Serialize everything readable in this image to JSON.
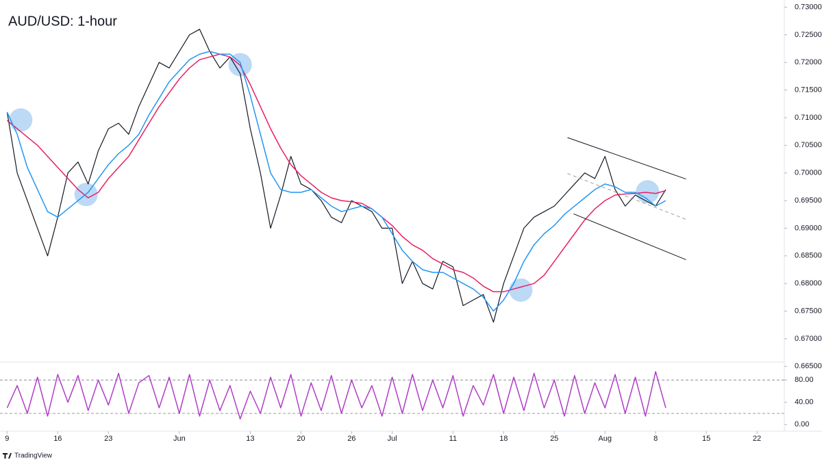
{
  "chart_data": [
    {
      "type": "line",
      "title": "AUD/USD: 1-hour",
      "brand": "TradingView",
      "x": [
        0,
        1,
        2,
        3,
        4,
        5,
        6,
        7,
        8,
        9,
        10,
        11,
        12,
        13,
        14,
        15,
        16,
        17,
        18,
        19,
        20,
        21,
        22,
        23,
        24,
        25,
        26,
        27,
        28,
        29,
        30,
        31,
        32,
        33,
        34,
        35,
        36,
        37,
        38,
        39,
        40,
        41,
        42,
        43,
        44,
        45,
        46,
        47,
        48,
        49,
        50,
        51,
        52,
        53,
        54,
        55,
        56,
        57,
        58,
        59,
        60,
        61,
        62,
        63,
        64,
        65
      ],
      "series": [
        {
          "color": "#131722",
          "values": [
            0.711,
            0.7,
            0.695,
            0.69,
            0.685,
            0.692,
            0.7,
            0.702,
            0.698,
            0.704,
            0.708,
            0.709,
            0.707,
            0.712,
            0.716,
            0.72,
            0.719,
            0.722,
            0.725,
            0.726,
            0.722,
            0.719,
            0.721,
            0.718,
            0.708,
            0.7,
            0.69,
            0.696,
            0.703,
            0.698,
            0.697,
            0.695,
            0.692,
            0.691,
            0.695,
            0.694,
            0.693,
            0.69,
            0.69,
            0.68,
            0.684,
            0.68,
            0.679,
            0.684,
            0.683,
            0.676,
            0.677,
            0.678,
            0.673,
            0.68,
            0.685,
            0.69,
            0.692,
            0.693,
            0.694,
            0.696,
            0.698,
            0.7,
            0.699,
            0.703,
            0.697,
            0.694,
            0.696,
            0.695,
            0.694,
            0.697
          ]
        },
        {
          "color": "#e91e63",
          "values": [
            0.7095,
            0.708,
            0.7065,
            0.705,
            0.703,
            0.701,
            0.699,
            0.697,
            0.6955,
            0.6965,
            0.699,
            0.701,
            0.703,
            0.706,
            0.709,
            0.712,
            0.7145,
            0.717,
            0.719,
            0.7205,
            0.721,
            0.7215,
            0.721,
            0.7195,
            0.716,
            0.712,
            0.708,
            0.7045,
            0.7015,
            0.6995,
            0.698,
            0.6965,
            0.6955,
            0.695,
            0.6948,
            0.6945,
            0.6935,
            0.692,
            0.6905,
            0.6885,
            0.687,
            0.686,
            0.6845,
            0.6835,
            0.6825,
            0.682,
            0.681,
            0.6795,
            0.6785,
            0.6785,
            0.679,
            0.6795,
            0.68,
            0.6815,
            0.684,
            0.6865,
            0.689,
            0.6915,
            0.6935,
            0.695,
            0.696,
            0.6962,
            0.6963,
            0.6965,
            0.6963,
            0.6968
          ]
        },
        {
          "color": "#2196f3",
          "values": [
            0.711,
            0.707,
            0.701,
            0.697,
            0.693,
            0.692,
            0.6935,
            0.695,
            0.6965,
            0.699,
            0.7015,
            0.7035,
            0.705,
            0.707,
            0.7105,
            0.7135,
            0.7165,
            0.7185,
            0.7205,
            0.7215,
            0.722,
            0.7215,
            0.7215,
            0.72,
            0.714,
            0.707,
            0.7,
            0.697,
            0.6965,
            0.6965,
            0.697,
            0.6955,
            0.694,
            0.693,
            0.6935,
            0.694,
            0.6935,
            0.692,
            0.689,
            0.686,
            0.684,
            0.6825,
            0.682,
            0.682,
            0.681,
            0.68,
            0.679,
            0.6775,
            0.675,
            0.677,
            0.68,
            0.684,
            0.687,
            0.689,
            0.6905,
            0.6925,
            0.694,
            0.6955,
            0.697,
            0.698,
            0.6975,
            0.6965,
            0.6965,
            0.6955,
            0.694,
            0.695
          ]
        }
      ],
      "xlim": [
        -0.7,
        76.7
      ],
      "xticks": [
        {
          "value": 0,
          "label": "9"
        },
        {
          "value": 5,
          "label": "16"
        },
        {
          "value": 10,
          "label": "23"
        },
        {
          "value": 17,
          "label": "Jun"
        },
        {
          "value": 24,
          "label": "13"
        },
        {
          "value": 29,
          "label": "20"
        },
        {
          "value": 34,
          "label": "26"
        },
        {
          "value": 38,
          "label": "Jul"
        },
        {
          "value": 44,
          "label": "11"
        },
        {
          "value": 49,
          "label": "18"
        },
        {
          "value": 54,
          "label": "25"
        },
        {
          "value": 59,
          "label": "Aug"
        },
        {
          "value": 64,
          "label": "8"
        },
        {
          "value": 69,
          "label": "15"
        },
        {
          "value": 74,
          "label": "22"
        }
      ],
      "ylim": [
        0.6659,
        0.7313
      ],
      "yticks": [
        {
          "value": 0.665,
          "label": "0.66500"
        },
        {
          "value": 0.67,
          "label": "0.67000"
        },
        {
          "value": 0.675,
          "label": "0.67500"
        },
        {
          "value": 0.68,
          "label": "0.68000"
        },
        {
          "value": 0.685,
          "label": "0.68500"
        },
        {
          "value": 0.69,
          "label": "0.69000"
        },
        {
          "value": 0.695,
          "label": "0.69500"
        },
        {
          "value": 0.7,
          "label": "0.70000"
        },
        {
          "value": 0.705,
          "label": "0.70500"
        },
        {
          "value": 0.71,
          "label": "0.71000"
        },
        {
          "value": 0.715,
          "label": "0.71500"
        },
        {
          "value": 0.72,
          "label": "0.72000"
        },
        {
          "value": 0.725,
          "label": "0.72500"
        },
        {
          "value": 0.73,
          "label": "0.73000"
        }
      ],
      "trendlines": [
        {
          "x": [
            55.3,
            67
          ],
          "y": [
            0.7064,
            0.6989
          ],
          "color": "#131722",
          "dashed": false
        },
        {
          "x": [
            55.9,
            67
          ],
          "y": [
            0.6926,
            0.6843
          ],
          "color": "#131722",
          "dashed": false
        },
        {
          "x": [
            55.3,
            67
          ],
          "y": [
            0.6999,
            0.6916
          ],
          "color": "#9e9e9e",
          "dashed": true
        }
      ],
      "highlights": {
        "color": "#90bff0",
        "x": [
          1.35,
          7.8,
          23,
          50.7,
          63.2
        ],
        "y": [
          0.7096,
          0.6961,
          0.7196,
          0.6788,
          0.6966
        ]
      }
    },
    {
      "type": "line",
      "x": [
        0,
        1,
        2,
        3,
        4,
        5,
        6,
        7,
        8,
        9,
        10,
        11,
        12,
        13,
        14,
        15,
        16,
        17,
        18,
        19,
        20,
        21,
        22,
        23,
        24,
        25,
        26,
        27,
        28,
        29,
        30,
        31,
        32,
        33,
        34,
        35,
        36,
        37,
        38,
        39,
        40,
        41,
        42,
        43,
        44,
        45,
        46,
        47,
        48,
        49,
        50,
        51,
        52,
        53,
        54,
        55,
        56,
        57,
        58,
        59,
        60,
        61,
        62,
        63,
        64,
        65
      ],
      "series": [
        {
          "color": "#b03cc8",
          "values": [
            30,
            70,
            20,
            85,
            15,
            90,
            40,
            88,
            25,
            80,
            35,
            92,
            20,
            75,
            88,
            30,
            85,
            20,
            90,
            15,
            80,
            25,
            70,
            10,
            60,
            20,
            85,
            30,
            90,
            15,
            75,
            25,
            88,
            20,
            80,
            30,
            70,
            15,
            85,
            20,
            90,
            25,
            80,
            30,
            88,
            15,
            70,
            35,
            90,
            20,
            85,
            25,
            92,
            30,
            80,
            15,
            88,
            20,
            75,
            30,
            90,
            20,
            85,
            15,
            95,
            30
          ]
        }
      ],
      "xlim": [
        -0.7,
        76.7
      ],
      "ylim": [
        -12,
        111
      ],
      "yticks": [
        {
          "value": 0,
          "label": "0.00"
        },
        {
          "value": 40,
          "label": "40.00"
        },
        {
          "value": 80,
          "label": "80.00"
        }
      ],
      "levels": [
        80,
        20
      ]
    }
  ]
}
